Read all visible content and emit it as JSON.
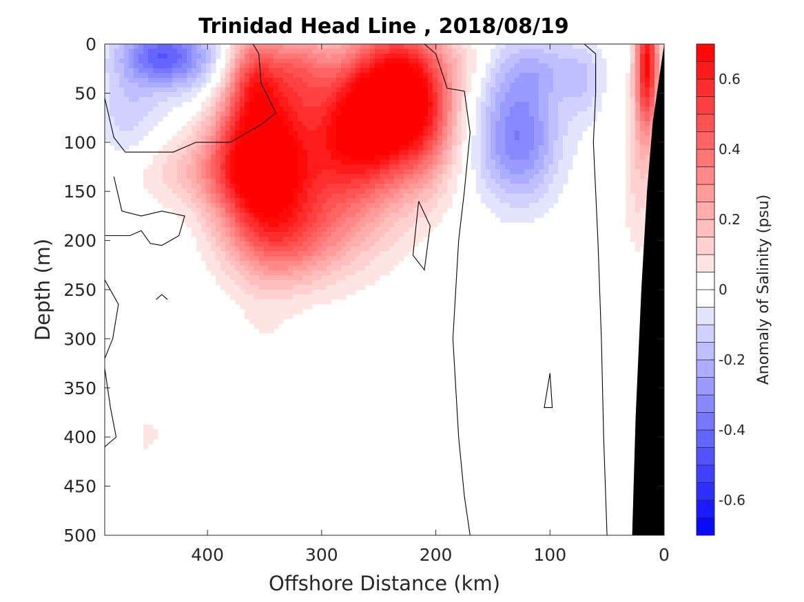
{
  "chart_data": {
    "type": "heatmap",
    "title": "Trinidad Head Line , 2018/08/19",
    "xlabel": "Offshore Distance (km)",
    "ylabel": "Depth (m)",
    "xlim": [
      490,
      0
    ],
    "ylim": [
      0,
      500
    ],
    "x_reversed": true,
    "y_reversed": true,
    "x_ticks": [
      400,
      300,
      200,
      100,
      0
    ],
    "y_ticks": [
      0,
      50,
      100,
      150,
      200,
      250,
      300,
      350,
      400,
      450,
      500
    ],
    "x_tick_labels": [
      "400",
      "300",
      "200",
      "100",
      "0"
    ],
    "y_tick_labels": [
      "0",
      "50",
      "100",
      "150",
      "200",
      "250",
      "300",
      "350",
      "400",
      "450",
      "500"
    ],
    "colorbar": {
      "label": "Anomaly of Salinity (psu)",
      "range": [
        -0.7,
        0.7
      ],
      "step": 0.05,
      "ticks": [
        -0.6,
        -0.4,
        -0.2,
        0,
        0.2,
        0.4,
        0.6
      ],
      "tick_labels": [
        "-0.6",
        "-0.4",
        "-0.2",
        "0",
        "0.2",
        "0.4",
        "0.6"
      ],
      "colormap": "blue-white-red",
      "negative_color": "#0000ff",
      "positive_color": "#ff0000"
    },
    "anomaly_features": [
      {
        "x": 440,
        "depth": 10,
        "sx": 25,
        "sy": 20,
        "value": -0.35
      },
      {
        "x": 405,
        "depth": 25,
        "sx": 40,
        "sy": 30,
        "value": -0.15
      },
      {
        "x": 470,
        "depth": 70,
        "sx": 20,
        "sy": 40,
        "value": -0.12
      },
      {
        "x": 355,
        "depth": 110,
        "sx": 28,
        "sy": 60,
        "value": 0.75
      },
      {
        "x": 265,
        "depth": 85,
        "sx": 35,
        "sy": 45,
        "value": 0.6
      },
      {
        "x": 235,
        "depth": 40,
        "sx": 30,
        "sy": 45,
        "value": 0.55
      },
      {
        "x": 320,
        "depth": 25,
        "sx": 20,
        "sy": 30,
        "value": 0.25
      },
      {
        "x": 360,
        "depth": 30,
        "sx": 15,
        "sy": 30,
        "value": 0.3
      },
      {
        "x": 300,
        "depth": 160,
        "sx": 45,
        "sy": 50,
        "value": 0.3
      },
      {
        "x": 330,
        "depth": 200,
        "sx": 30,
        "sy": 30,
        "value": 0.18
      },
      {
        "x": 405,
        "depth": 130,
        "sx": 45,
        "sy": 25,
        "value": 0.14
      },
      {
        "x": 210,
        "depth": 75,
        "sx": 20,
        "sy": 50,
        "value": 0.25
      },
      {
        "x": 170,
        "depth": 20,
        "sx": 15,
        "sy": 15,
        "value": 0.06
      },
      {
        "x": 128,
        "depth": 95,
        "sx": 25,
        "sy": 45,
        "value": -0.35
      },
      {
        "x": 110,
        "depth": 25,
        "sx": 30,
        "sy": 25,
        "value": -0.15
      },
      {
        "x": 70,
        "depth": 40,
        "sx": 12,
        "sy": 30,
        "value": -0.1
      },
      {
        "x": 15,
        "depth": 20,
        "sx": 7,
        "sy": 50,
        "value": 0.65
      },
      {
        "x": 22,
        "depth": 130,
        "sx": 10,
        "sy": 60,
        "value": 0.12
      },
      {
        "x": 350,
        "depth": 380,
        "sx": 20,
        "sy": 120,
        "value": 0.05
      },
      {
        "x": 460,
        "depth": 470,
        "sx": 12,
        "sy": 40,
        "value": 0.05
      },
      {
        "x": 450,
        "depth": 395,
        "sx": 12,
        "sy": 20,
        "value": 0.05
      },
      {
        "x": 150,
        "depth": 495,
        "sx": 6,
        "sy": 10,
        "value": -0.05
      },
      {
        "x": 130,
        "depth": 365,
        "sx": 4,
        "sy": 10,
        "value": -0.04
      }
    ],
    "zero_contours": [
      [
        [
          490,
          55
        ],
        [
          482,
          95
        ],
        [
          472,
          110
        ],
        [
          448,
          110
        ],
        [
          430,
          110
        ],
        [
          410,
          100
        ],
        [
          380,
          100
        ],
        [
          353,
          82
        ],
        [
          340,
          70
        ],
        [
          353,
          40
        ],
        [
          355,
          10
        ],
        [
          360,
          0
        ]
      ],
      [
        [
          490,
          195
        ],
        [
          468,
          195
        ],
        [
          458,
          190
        ],
        [
          450,
          203
        ],
        [
          440,
          205
        ],
        [
          425,
          195
        ],
        [
          420,
          175
        ],
        [
          440,
          170
        ],
        [
          458,
          175
        ],
        [
          475,
          170
        ],
        [
          482,
          135
        ]
      ],
      [
        [
          215,
          160
        ],
        [
          205,
          185
        ],
        [
          210,
          230
        ],
        [
          220,
          215
        ],
        [
          215,
          160
        ]
      ],
      [
        [
          100,
          335
        ],
        [
          105,
          370
        ],
        [
          98,
          370
        ],
        [
          100,
          335
        ]
      ],
      [
        [
          170,
          500
        ],
        [
          175,
          460
        ],
        [
          180,
          400
        ],
        [
          185,
          300
        ],
        [
          180,
          200
        ],
        [
          175,
          150
        ],
        [
          170,
          90
        ],
        [
          175,
          48
        ],
        [
          190,
          45
        ],
        [
          200,
          10
        ],
        [
          210,
          0
        ]
      ],
      [
        [
          50,
          500
        ],
        [
          53,
          400
        ],
        [
          55,
          300
        ],
        [
          58,
          200
        ],
        [
          62,
          100
        ],
        [
          60,
          50
        ],
        [
          60,
          10
        ],
        [
          70,
          0
        ]
      ],
      [
        [
          490,
          240
        ],
        [
          478,
          265
        ],
        [
          483,
          300
        ],
        [
          490,
          320
        ]
      ],
      [
        [
          490,
          330
        ],
        [
          485,
          370
        ],
        [
          480,
          400
        ],
        [
          490,
          410
        ]
      ],
      [
        [
          445,
          260
        ],
        [
          440,
          255
        ],
        [
          435,
          260
        ]
      ]
    ],
    "bathymetry": {
      "color": "#000000",
      "outline": [
        [
          0,
          0
        ],
        [
          10,
          80
        ],
        [
          15,
          150
        ],
        [
          20,
          250
        ],
        [
          25,
          380
        ],
        [
          28,
          500
        ],
        [
          0,
          500
        ]
      ]
    }
  }
}
